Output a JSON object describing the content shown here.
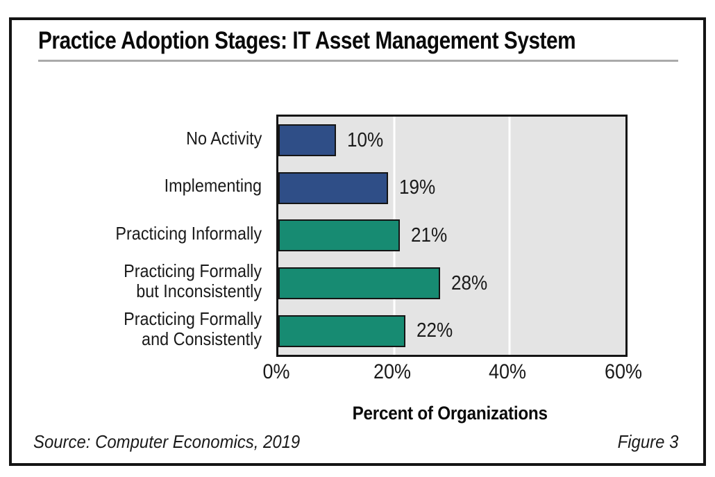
{
  "header": {
    "title": "Practice Adoption Stages: IT Asset Management System"
  },
  "chart_data": {
    "type": "bar",
    "orientation": "horizontal",
    "title": "Practice Adoption Stages: IT Asset Management System",
    "categories": [
      "No Activity",
      "Implementing",
      "Practicing Informally",
      "Practicing Formally\nbut Inconsistently",
      "Practicing Formally\nand Consistently"
    ],
    "values": [
      10,
      19,
      21,
      28,
      22
    ],
    "value_labels": [
      "10%",
      "19%",
      "21%",
      "28%",
      "22%"
    ],
    "xlabel": "Percent of Organizations",
    "ylabel": "",
    "xlim": [
      0,
      60
    ],
    "xticks": [
      "0%",
      "20%",
      "40%",
      "60%"
    ],
    "xtick_values": [
      0,
      20,
      40,
      60
    ],
    "gridline_values": [
      20,
      40
    ],
    "bar_colors": [
      "#2F4E87",
      "#2F4E87",
      "#178B72",
      "#178B72",
      "#178B72"
    ],
    "colors": {
      "blue_series": "#2F4E87",
      "green_series": "#178B72",
      "plot_background": "#E4E4E4",
      "gridline": "#FFFFFF",
      "bar_outline": "#141414",
      "frame_border": "#141414",
      "title_rule": "#AAAAAA"
    },
    "legend": "none",
    "grid": "vertical-white-lines"
  },
  "footer": {
    "source": "Source: Computer Economics, 2019",
    "figure_label": "Figure 3"
  }
}
